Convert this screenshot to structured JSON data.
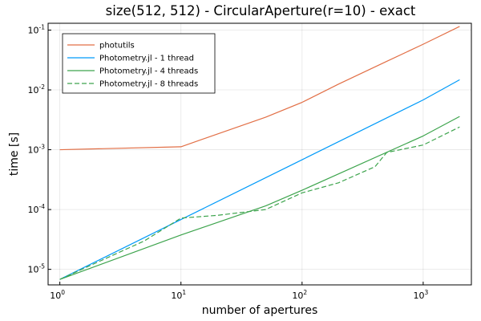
{
  "chart_data": {
    "type": "line",
    "title": "size(512, 512) - CircularAperture(r=10) - exact",
    "xlabel": "number of apertures",
    "ylabel": "time [s]",
    "xscale": "log10",
    "yscale": "log10",
    "xlim": [
      0.8,
      2500
    ],
    "ylim": [
      5.5e-06,
      0.13
    ],
    "grid": true,
    "legend_position": "top-left",
    "x_ticks": [
      {
        "base": "10",
        "exp": "0",
        "value": 1
      },
      {
        "base": "10",
        "exp": "1",
        "value": 10
      },
      {
        "base": "10",
        "exp": "2",
        "value": 100
      },
      {
        "base": "10",
        "exp": "3",
        "value": 1000
      }
    ],
    "y_ticks": [
      {
        "base": "10",
        "exp": "-5",
        "value": 1e-05
      },
      {
        "base": "10",
        "exp": "-4",
        "value": 0.0001
      },
      {
        "base": "10",
        "exp": "-3",
        "value": 0.001
      },
      {
        "base": "10",
        "exp": "-2",
        "value": 0.01
      },
      {
        "base": "10",
        "exp": "-1",
        "value": 0.1
      }
    ],
    "series": [
      {
        "name": "photutils",
        "color": "#e26f46",
        "dash": "solid",
        "x": [
          1,
          10,
          50,
          100,
          200,
          500,
          1000,
          2000
        ],
        "y": [
          0.001,
          0.00112,
          0.0035,
          0.0062,
          0.0125,
          0.03,
          0.058,
          0.115
        ]
      },
      {
        "name": "Photometry.jl - 1 thread",
        "color": "#009af9",
        "dash": "solid",
        "x": [
          1,
          10,
          100,
          1000,
          2000
        ],
        "y": [
          6.8e-06,
          6.8e-05,
          0.00068,
          0.0068,
          0.0148
        ]
      },
      {
        "name": "Photometry.jl - 4 threads",
        "color": "#3da44d",
        "dash": "solid",
        "x": [
          1,
          10,
          50,
          100,
          1000,
          2000
        ],
        "y": [
          6.8e-06,
          3.75e-05,
          0.000115,
          0.00021,
          0.0017,
          0.0036
        ]
      },
      {
        "name": "Photometry.jl - 8 threads",
        "color": "#3da44d",
        "dash": "dashed",
        "x": [
          1,
          5,
          10,
          20,
          50,
          100,
          200,
          400,
          500,
          1000,
          2000
        ],
        "y": [
          6.8e-06,
          3e-05,
          7.2e-05,
          8e-05,
          0.0001,
          0.00019,
          0.00028,
          0.00052,
          0.0009,
          0.0012,
          0.0024
        ]
      }
    ]
  }
}
